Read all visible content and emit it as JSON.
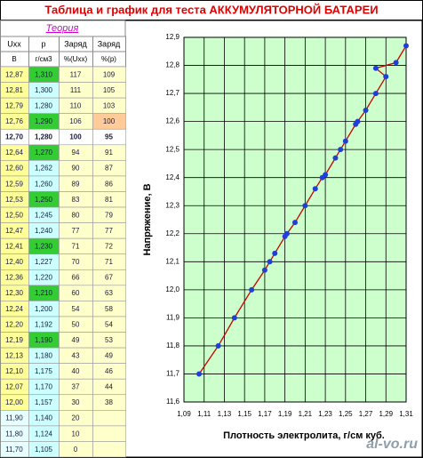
{
  "title": "Таблица и график для теста АККУМУЛЯТОРНОЙ БАТАРЕИ",
  "table": {
    "theory": "Теория",
    "header": [
      [
        "Uxx",
        "p",
        "Заряд",
        "Заряд"
      ],
      [
        "В",
        "г/см3",
        "%(Uxx)",
        "%(p)"
      ]
    ],
    "rows": [
      [
        "12,87",
        "1,310",
        "117",
        "109"
      ],
      [
        "12,81",
        "1,300",
        "111",
        "105"
      ],
      [
        "12,79",
        "1,280",
        "110",
        "103"
      ],
      [
        "12,76",
        "1,290",
        "106",
        "100"
      ],
      [
        "12,70",
        "1,280",
        "100",
        "95"
      ],
      [
        "12,64",
        "1,270",
        "94",
        "91"
      ],
      [
        "12,60",
        "1,262",
        "90",
        "87"
      ],
      [
        "12,59",
        "1,260",
        "89",
        "86"
      ],
      [
        "12,53",
        "1,250",
        "83",
        "81"
      ],
      [
        "12,50",
        "1,245",
        "80",
        "79"
      ],
      [
        "12,47",
        "1,240",
        "77",
        "77"
      ],
      [
        "12,41",
        "1,230",
        "71",
        "72"
      ],
      [
        "12,40",
        "1,227",
        "70",
        "71"
      ],
      [
        "12,36",
        "1,220",
        "66",
        "67"
      ],
      [
        "12,30",
        "1,210",
        "60",
        "63"
      ],
      [
        "12,24",
        "1,200",
        "54",
        "58"
      ],
      [
        "12,20",
        "1,192",
        "50",
        "54"
      ],
      [
        "12,19",
        "1,190",
        "49",
        "53"
      ],
      [
        "12,13",
        "1,180",
        "43",
        "49"
      ],
      [
        "12,10",
        "1,175",
        "40",
        "46"
      ],
      [
        "12,07",
        "1,170",
        "37",
        "44"
      ],
      [
        "12,00",
        "1,157",
        "30",
        "38"
      ],
      [
        "11,90",
        "1,140",
        "20",
        ""
      ],
      [
        "11,80",
        "1,124",
        "10",
        ""
      ],
      [
        "11,70",
        "1,105",
        "0",
        ""
      ]
    ]
  },
  "chart_data": {
    "type": "line",
    "x_label": "Плотность электролита, г/см куб.",
    "y_label": "Напряжение, В",
    "x": [
      1.31,
      1.3,
      1.28,
      1.29,
      1.28,
      1.27,
      1.262,
      1.26,
      1.25,
      1.245,
      1.24,
      1.23,
      1.227,
      1.22,
      1.21,
      1.2,
      1.192,
      1.19,
      1.18,
      1.175,
      1.17,
      1.157,
      1.14,
      1.124,
      1.105
    ],
    "series": [
      {
        "color": "#cc0000",
        "marker_color": "#1f3fd6",
        "values": [
          12.87,
          12.81,
          12.79,
          12.76,
          12.7,
          12.64,
          12.6,
          12.59,
          12.53,
          12.5,
          12.47,
          12.41,
          12.4,
          12.36,
          12.3,
          12.24,
          12.2,
          12.19,
          12.13,
          12.1,
          12.07,
          12.0,
          11.9,
          11.8,
          11.7
        ]
      }
    ],
    "xlim": [
      1.09,
      1.31
    ],
    "xticks": [
      {
        "value": 1.09,
        "label": "1,09"
      },
      {
        "value": 1.11,
        "label": "1,11"
      },
      {
        "value": 1.13,
        "label": "1,13"
      },
      {
        "value": 1.15,
        "label": "1,15"
      },
      {
        "value": 1.17,
        "label": "1,17"
      },
      {
        "value": 1.19,
        "label": "1,19"
      },
      {
        "value": 1.21,
        "label": "1,21"
      },
      {
        "value": 1.23,
        "label": "1,23"
      },
      {
        "value": 1.25,
        "label": "1,25"
      },
      {
        "value": 1.27,
        "label": "1,27"
      },
      {
        "value": 1.29,
        "label": "1,29"
      },
      {
        "value": 1.31,
        "label": "1,31"
      }
    ],
    "ylim": [
      11.6,
      12.9
    ],
    "yticks": [
      {
        "value": 11.6,
        "label": "11,6"
      },
      {
        "value": 11.7,
        "label": "11,7"
      },
      {
        "value": 11.8,
        "label": "11,8"
      },
      {
        "value": 11.9,
        "label": "11,9"
      },
      {
        "value": 12.0,
        "label": "12,0"
      },
      {
        "value": 12.1,
        "label": "12,1"
      },
      {
        "value": 12.2,
        "label": "12,2"
      },
      {
        "value": 12.3,
        "label": "12,3"
      },
      {
        "value": 12.4,
        "label": "12,4"
      },
      {
        "value": 12.5,
        "label": "12,5"
      },
      {
        "value": 12.6,
        "label": "12,6"
      },
      {
        "value": 12.7,
        "label": "12,7"
      },
      {
        "value": 12.8,
        "label": "12,8"
      },
      {
        "value": 12.9,
        "label": "12,9"
      }
    ],
    "grid": true,
    "plot_background": "#ccffcc"
  },
  "watermark": "al-vo.ru"
}
